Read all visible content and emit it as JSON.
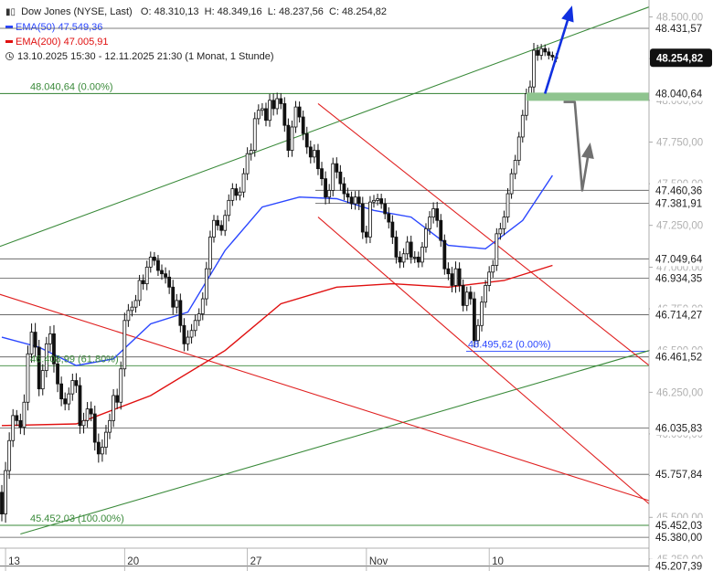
{
  "legend": {
    "instrument": "Dow Jones (NYSE, Last)",
    "ohlc": "O: 48.310,13  H: 48.349,16  L: 48.237,56  C: 48.254,82",
    "ema50_label": "EMA(50)",
    "ema50_value": "47.549,36",
    "ema200_label": "EMA(200)",
    "ema200_value": "47.005,91",
    "period": "13.10.2025 15:30 - 12.11.2025 21:30",
    "interval": "(1 Monat, 1 Stunde)"
  },
  "colors": {
    "candle": "#111111",
    "ema50": "#2a46ff",
    "ema200": "#e01010",
    "channel_green": "#3a8a3a",
    "channel_red": "#e02020",
    "arrow_blue": "#1030e0",
    "arrow_gray": "#707070",
    "zone_green": "#8fc48f",
    "hline": "#555555",
    "price_box": "#111111"
  },
  "chart_data": {
    "type": "candlestick",
    "title": "",
    "xlabel": "",
    "ylabel": "",
    "ylim": [
      45170,
      48560
    ],
    "x_ticks": [
      {
        "label": "13",
        "bar": 1
      },
      {
        "label": "20",
        "bar": 33
      },
      {
        "label": "27",
        "bar": 66
      },
      {
        "label": "Nov",
        "bar": 98
      },
      {
        "label": "10",
        "bar": 131
      }
    ],
    "y_ticks": [
      {
        "value": 48500,
        "label": "48.500,00"
      },
      {
        "value": 48250,
        "label": "48.250,00"
      },
      {
        "value": 48000,
        "label": "48.000,00"
      },
      {
        "value": 47750,
        "label": "47.750,00"
      },
      {
        "value": 47500,
        "label": "47.500,00"
      },
      {
        "value": 47250,
        "label": "47.250,00"
      },
      {
        "value": 47000,
        "label": "47.000,00"
      },
      {
        "value": 46750,
        "label": "46.750,00"
      },
      {
        "value": 46500,
        "label": "46.500,00"
      },
      {
        "value": 46250,
        "label": "46.250,00"
      },
      {
        "value": 46000,
        "label": "46.000,00"
      },
      {
        "value": 45750,
        "label": "45.750,00"
      },
      {
        "value": 45500,
        "label": "45.500,00"
      },
      {
        "value": 45250,
        "label": "45.250,00"
      }
    ],
    "levels": [
      {
        "value": 48431.57,
        "label": "48.431,57"
      },
      {
        "value": 48040.64,
        "label": "48.040,64"
      },
      {
        "value": 47460.36,
        "label": "47.460,36"
      },
      {
        "value": 47381.91,
        "label": "47.381,91"
      },
      {
        "value": 47049.64,
        "label": "47.049,64"
      },
      {
        "value": 46934.35,
        "label": "46.934,35"
      },
      {
        "value": 46714.27,
        "label": "46.714,27"
      },
      {
        "value": 46461.52,
        "label": "46.461,52"
      },
      {
        "value": 46035.83,
        "label": "46.035,83"
      },
      {
        "value": 45757.84,
        "label": "45.757,84"
      },
      {
        "value": 45452.03,
        "label": "45.452,03"
      },
      {
        "value": 45380.0,
        "label": "45.380,00"
      },
      {
        "value": 45207.39,
        "label": "45.207,39"
      }
    ],
    "last_price": {
      "value": 48254.82,
      "label": "48.254,82"
    },
    "fib_labels": [
      {
        "text": "48.040,64 (0.00%)",
        "value": 48040.64
      },
      {
        "text": "46.408,99 (61.80%)",
        "value": 46408.99
      },
      {
        "text": "45.452,03 (100.00%)",
        "value": 45452.03
      },
      {
        "text": "46.495,62 (0.00%)",
        "value": 46495.62
      }
    ],
    "closes": [
      45520,
      45780,
      45960,
      46110,
      46080,
      46040,
      46190,
      46480,
      46610,
      46520,
      46270,
      46380,
      46540,
      46600,
      46420,
      46300,
      46210,
      46180,
      46240,
      46320,
      46290,
      46050,
      46080,
      46150,
      46120,
      45950,
      45880,
      45920,
      46010,
      46080,
      46230,
      46190,
      46390,
      46680,
      46740,
      46760,
      46800,
      46920,
      46900,
      47000,
      47060,
      47040,
      46980,
      46960,
      46940,
      46880,
      46760,
      46800,
      46650,
      46540,
      46580,
      46620,
      46680,
      46720,
      46810,
      46990,
      47180,
      47280,
      47250,
      47220,
      47310,
      47400,
      47470,
      47430,
      47450,
      47560,
      47680,
      47700,
      47890,
      47940,
      47950,
      47880,
      48000,
      47950,
      48010,
      47980,
      47850,
      47700,
      47840,
      47960,
      47900,
      47800,
      47720,
      47660,
      47700,
      47590,
      47530,
      47420,
      47460,
      47620,
      47570,
      47500,
      47440,
      47420,
      47380,
      47420,
      47380,
      47210,
      47180,
      47390,
      47400,
      47410,
      47380,
      47320,
      47270,
      47180,
      47060,
      47030,
      47080,
      47150,
      47060,
      47060,
      47030,
      47120,
      47230,
      47300,
      47350,
      47280,
      47160,
      46990,
      46960,
      46890,
      46990,
      46890,
      46770,
      46850,
      46810,
      46560,
      46650,
      46790,
      46890,
      46970,
      47010,
      47200,
      47230,
      47300,
      47440,
      47560,
      47640,
      47780,
      47910,
      48040,
      48080,
      48300,
      48270,
      48310,
      48290,
      48270,
      48260,
      48250
    ],
    "volatility": [
      80,
      95,
      90,
      70,
      60,
      75,
      85,
      90,
      95,
      100,
      80,
      70,
      75,
      85,
      95,
      90,
      80,
      70,
      70,
      75,
      80,
      90,
      85,
      75,
      80,
      90,
      95,
      85,
      80,
      75,
      70,
      75,
      80,
      85,
      70,
      65,
      60,
      60,
      65,
      70,
      60,
      55,
      60,
      65,
      70,
      75,
      80,
      70,
      75,
      80,
      75,
      70,
      65,
      60,
      70,
      75,
      70,
      60,
      55,
      55,
      60,
      65,
      60,
      55,
      55,
      60,
      70,
      75,
      70,
      65,
      60,
      65,
      70,
      75,
      65,
      60,
      70,
      75,
      70,
      65,
      60,
      70,
      75,
      70,
      65,
      70,
      75,
      80,
      70,
      65,
      70,
      75,
      70,
      65,
      60,
      65,
      70,
      75,
      70,
      65,
      60,
      55,
      55,
      60,
      70,
      75,
      70,
      65,
      60,
      65,
      70,
      65,
      60,
      55,
      60,
      65,
      70,
      75,
      70,
      65,
      70,
      75,
      80,
      70,
      65,
      60,
      65,
      75,
      70,
      65,
      60,
      65,
      60,
      60,
      65,
      70,
      60,
      55,
      60,
      55,
      60,
      55,
      70,
      80,
      60,
      50,
      45,
      45,
      40,
      40
    ]
  },
  "indicator_data": {
    "ema50": [
      [
        0,
        46580
      ],
      [
        10,
        46520
      ],
      [
        20,
        46410
      ],
      [
        30,
        46450
      ],
      [
        40,
        46660
      ],
      [
        50,
        46730
      ],
      [
        60,
        47100
      ],
      [
        70,
        47360
      ],
      [
        80,
        47420
      ],
      [
        90,
        47410
      ],
      [
        100,
        47340
      ],
      [
        110,
        47300
      ],
      [
        120,
        47130
      ],
      [
        130,
        47110
      ],
      [
        140,
        47280
      ],
      [
        148,
        47550
      ]
    ],
    "ema200": [
      [
        0,
        46050
      ],
      [
        20,
        46060
      ],
      [
        40,
        46230
      ],
      [
        60,
        46500
      ],
      [
        75,
        46780
      ],
      [
        90,
        46880
      ],
      [
        105,
        46900
      ],
      [
        120,
        46880
      ],
      [
        135,
        46920
      ],
      [
        148,
        47010
      ]
    ]
  }
}
